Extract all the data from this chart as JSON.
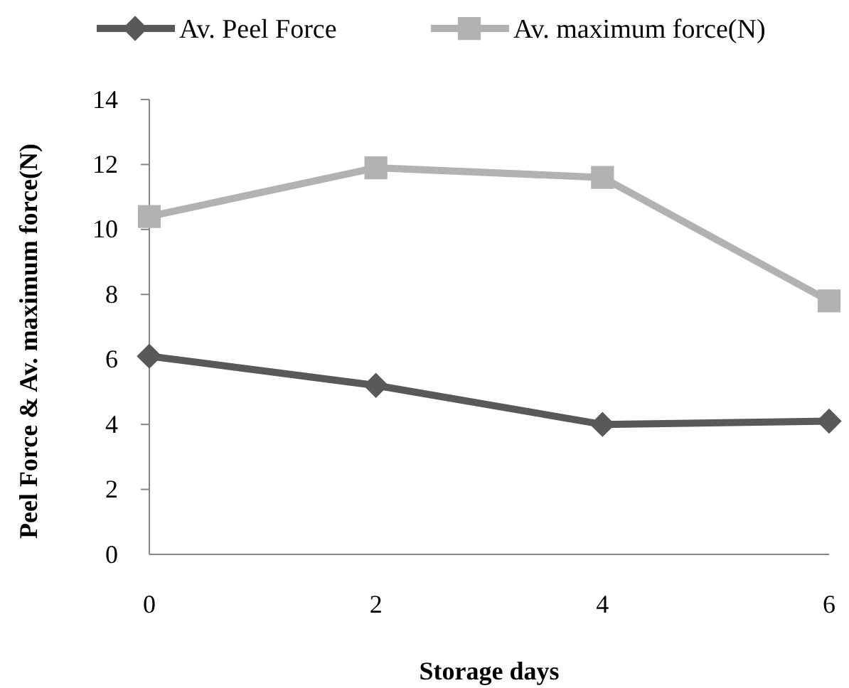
{
  "chart_data": {
    "type": "line",
    "xlabel": "Storage days",
    "ylabel": "Peel Force & Av. maximum force(N)",
    "x": [
      0,
      2,
      4,
      6
    ],
    "series": [
      {
        "name": "Av. Peel Force",
        "color": "#595959",
        "marker": "diamond",
        "values": [
          6.1,
          5.2,
          4.0,
          4.1
        ]
      },
      {
        "name": "Av. maximum force(N)",
        "color": "#b2b2b2",
        "marker": "square",
        "values": [
          10.4,
          11.9,
          11.6,
          7.8
        ]
      }
    ],
    "xlim": [
      0,
      6
    ],
    "xticks": [
      0,
      2,
      4,
      6
    ],
    "ylim": [
      0,
      14
    ],
    "yticks": [
      0,
      2,
      4,
      6,
      8,
      10,
      12,
      14
    ],
    "grid": false,
    "legend": "top"
  }
}
